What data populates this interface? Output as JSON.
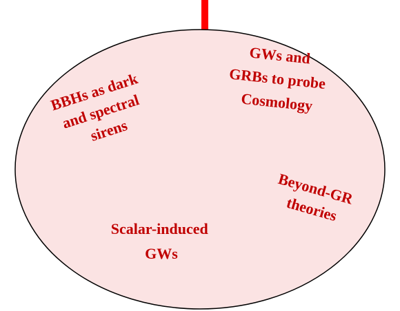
{
  "topics": [
    {
      "lines": [
        "BBHs as dark",
        "and spectral",
        "sirens"
      ]
    },
    {
      "lines": [
        "GWs and",
        "GRBs to probe",
        "Cosmology"
      ]
    },
    {
      "lines": [
        "Beyond-GR",
        "theories"
      ]
    },
    {
      "lines": [
        "Scalar-induced",
        "GWs"
      ]
    }
  ]
}
